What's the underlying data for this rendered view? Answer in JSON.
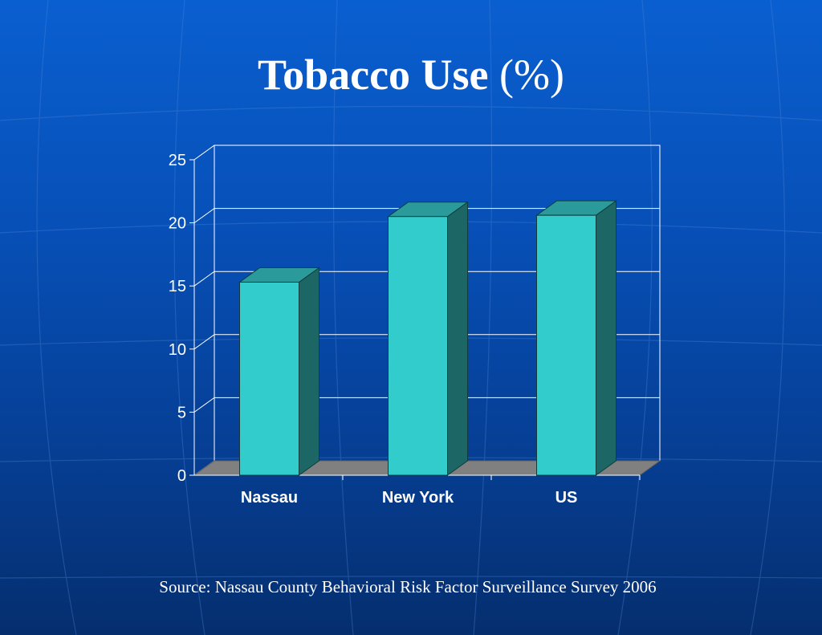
{
  "slide": {
    "title": "Tobacco Use",
    "title_unit": "(%)",
    "source": "Source: Nassau County Behavioral Risk Factor Surveillance Survey 2006"
  },
  "colors": {
    "bar_front": "#33cccc",
    "bar_top": "#2a9a9a",
    "bar_side": "#1d6666",
    "floor": "#808080",
    "grid": "#ffffff"
  },
  "chart_data": {
    "type": "bar",
    "categories": [
      "Nassau",
      "New York",
      "US"
    ],
    "values": [
      15.3,
      20.5,
      20.6
    ],
    "ylim": [
      0,
      25
    ],
    "yticks": [
      0,
      5,
      10,
      15,
      20,
      25
    ],
    "grid": true,
    "style": "3d-column"
  }
}
